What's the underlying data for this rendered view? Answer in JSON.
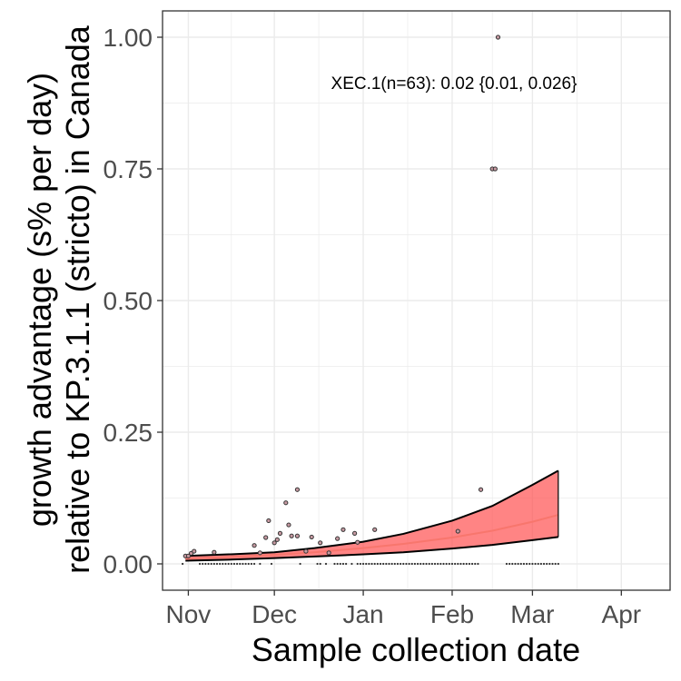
{
  "chart_data": {
    "type": "scatter",
    "title": "",
    "xlabel": "Sample collection date",
    "ylabel_lines": [
      "growth advantage (s% per day)",
      "relative to KP.3.1.1 (stricto) in Canada"
    ],
    "annotation": "XEC.1(n=63): 0.02 {0.01, 0.026}",
    "x_ticks": [
      "Nov",
      "Dec",
      "Jan",
      "Feb",
      "Mar",
      "Apr"
    ],
    "x_tick_dates": [
      "2024-11-01",
      "2024-12-01",
      "2025-01-01",
      "2025-02-01",
      "2025-03-01",
      "2025-04-01"
    ],
    "xlim": [
      "2024-10-23",
      "2025-04-18"
    ],
    "y_ticks": [
      "0.00",
      "0.25",
      "0.50",
      "0.75",
      "1.00"
    ],
    "ylim": [
      -0.05,
      1.05
    ],
    "grid": true,
    "colors": {
      "fit": "#f8766d",
      "band": "#ff5050",
      "border": "#000000",
      "point_fill": "#c79aa2",
      "grid": "#ebebeb",
      "panel_border": "#333333"
    },
    "points": [
      {
        "date": "2024-10-31",
        "y": 0.015
      },
      {
        "date": "2024-11-01",
        "y": 0.015
      },
      {
        "date": "2024-11-02",
        "y": 0.02
      },
      {
        "date": "2024-11-03",
        "y": 0.024
      },
      {
        "date": "2024-11-10",
        "y": 0.022
      },
      {
        "date": "2024-11-24",
        "y": 0.035
      },
      {
        "date": "2024-11-26",
        "y": 0.021
      },
      {
        "date": "2024-11-28",
        "y": 0.05
      },
      {
        "date": "2024-11-29",
        "y": 0.082
      },
      {
        "date": "2024-12-01",
        "y": 0.04
      },
      {
        "date": "2024-12-02",
        "y": 0.046
      },
      {
        "date": "2024-12-03",
        "y": 0.058
      },
      {
        "date": "2024-12-05",
        "y": 0.116
      },
      {
        "date": "2024-12-06",
        "y": 0.074
      },
      {
        "date": "2024-12-07",
        "y": 0.053
      },
      {
        "date": "2024-12-09",
        "y": 0.053
      },
      {
        "date": "2024-12-09",
        "y": 0.141
      },
      {
        "date": "2024-12-12",
        "y": 0.024
      },
      {
        "date": "2024-12-14",
        "y": 0.051
      },
      {
        "date": "2024-12-17",
        "y": 0.04
      },
      {
        "date": "2024-12-20",
        "y": 0.021
      },
      {
        "date": "2024-12-23",
        "y": 0.048
      },
      {
        "date": "2024-12-25",
        "y": 0.065
      },
      {
        "date": "2024-12-29",
        "y": 0.058
      },
      {
        "date": "2024-12-30",
        "y": 0.041
      },
      {
        "date": "2025-01-05",
        "y": 0.065
      },
      {
        "date": "2025-02-03",
        "y": 0.062
      },
      {
        "date": "2025-02-11",
        "y": 0.141
      },
      {
        "date": "2025-02-15",
        "y": 0.75
      },
      {
        "date": "2025-02-16",
        "y": 0.75
      },
      {
        "date": "2025-02-17",
        "y": 1.0
      }
    ],
    "zero_date_ranges": [
      [
        "2024-10-30",
        "2024-10-30"
      ],
      [
        "2024-11-05",
        "2024-11-24"
      ],
      [
        "2024-11-26",
        "2024-11-26"
      ],
      [
        "2024-11-30",
        "2024-11-30"
      ],
      [
        "2024-12-10",
        "2024-12-10"
      ],
      [
        "2024-12-16",
        "2024-12-17"
      ],
      [
        "2024-12-19",
        "2024-12-19"
      ],
      [
        "2024-12-22",
        "2024-12-26"
      ],
      [
        "2024-12-28",
        "2024-12-28"
      ],
      [
        "2024-12-30",
        "2025-02-10"
      ],
      [
        "2025-02-20",
        "2025-03-10"
      ]
    ],
    "fit": {
      "dates": [
        "2024-10-31",
        "2024-11-15",
        "2024-12-01",
        "2024-12-15",
        "2025-01-01",
        "2025-01-15",
        "2025-02-01",
        "2025-02-15",
        "2025-03-01",
        "2025-03-10"
      ],
      "y": [
        0.01,
        0.013,
        0.017,
        0.022,
        0.03,
        0.038,
        0.05,
        0.063,
        0.08,
        0.093
      ],
      "lower": [
        0.006,
        0.008,
        0.011,
        0.014,
        0.018,
        0.022,
        0.029,
        0.036,
        0.045,
        0.051
      ],
      "upper": [
        0.015,
        0.018,
        0.022,
        0.03,
        0.042,
        0.057,
        0.082,
        0.11,
        0.15,
        0.177
      ]
    }
  }
}
